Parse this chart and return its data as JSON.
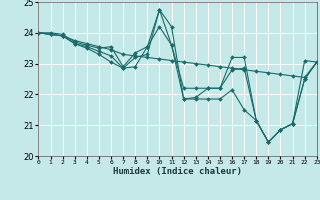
{
  "xlabel": "Humidex (Indice chaleur)",
  "bg_color": "#c5e8e8",
  "grid_color": "#ffffff",
  "line_color": "#1a6b6b",
  "xlim": [
    0,
    23
  ],
  "ylim": [
    20,
    25
  ],
  "xticks": [
    0,
    1,
    2,
    3,
    4,
    5,
    6,
    7,
    8,
    9,
    10,
    11,
    12,
    13,
    14,
    15,
    16,
    17,
    18,
    19,
    20,
    21,
    22,
    23
  ],
  "yticks": [
    20,
    21,
    22,
    23,
    24,
    25
  ],
  "series": [
    [
      24.0,
      23.95,
      23.9,
      23.75,
      23.65,
      23.55,
      23.45,
      23.3,
      23.25,
      23.2,
      23.15,
      23.1,
      23.05,
      23.0,
      22.95,
      22.9,
      22.85,
      22.8,
      22.75,
      22.7,
      22.65,
      22.6,
      22.55,
      23.05
    ],
    [
      24.0,
      24.0,
      23.95,
      23.7,
      23.6,
      23.5,
      23.55,
      22.9,
      23.35,
      23.55,
      24.2,
      23.6,
      22.2,
      22.2,
      22.2,
      22.2,
      23.2,
      23.2,
      21.15,
      20.45,
      20.85,
      21.05,
      23.1,
      23.05
    ],
    [
      24.0,
      23.95,
      23.9,
      23.65,
      23.55,
      23.4,
      23.25,
      22.85,
      22.9,
      23.55,
      24.75,
      23.6,
      21.85,
      21.9,
      22.2,
      22.2,
      22.8,
      22.85,
      21.15,
      20.45,
      20.85,
      21.05,
      22.5,
      23.05
    ],
    [
      24.0,
      23.95,
      23.9,
      23.65,
      23.5,
      23.3,
      23.05,
      22.85,
      23.2,
      23.3,
      24.75,
      24.2,
      21.85,
      21.85,
      21.85,
      21.85,
      22.15,
      21.5,
      21.15,
      20.45,
      20.85,
      21.05,
      22.5,
      23.05
    ]
  ]
}
